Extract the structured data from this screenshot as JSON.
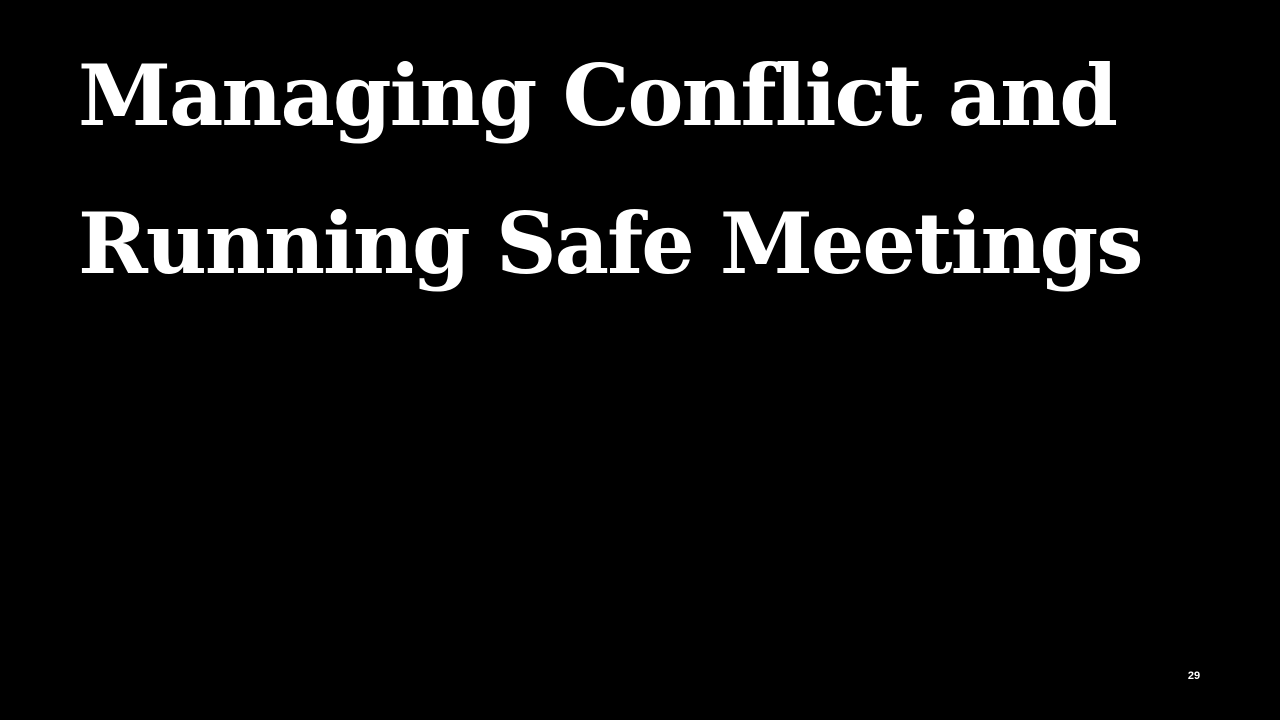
{
  "slide": {
    "title_lines": [
      "Managing Conflict and",
      "Running Safe Meetings"
    ],
    "page_number": "29"
  },
  "colors": {
    "background": "#000000",
    "text": "#ffffff"
  }
}
